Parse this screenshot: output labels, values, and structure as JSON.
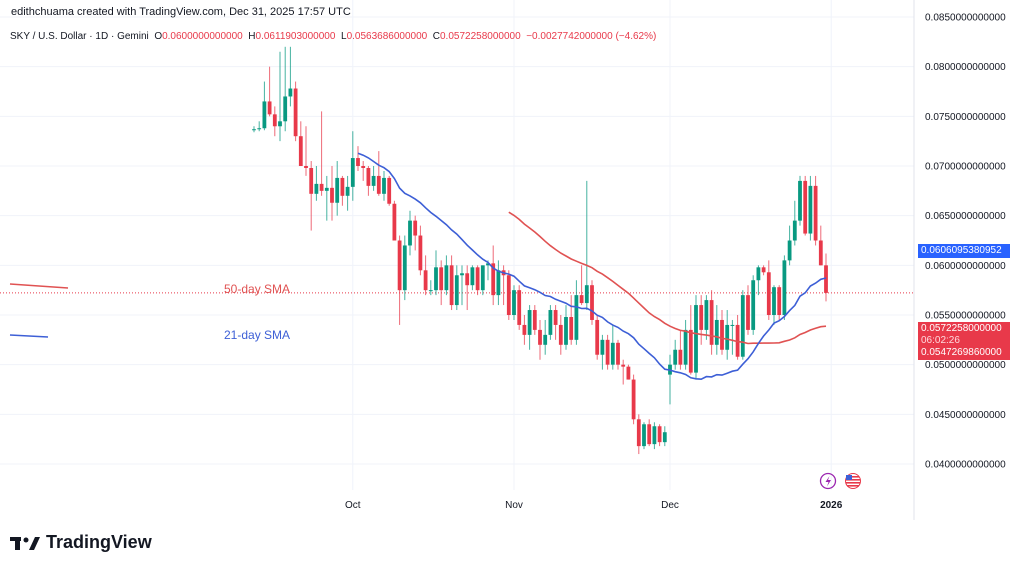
{
  "credit": "edithchuama created with TradingView.com, Dec 31, 2025 17:57 UTC",
  "legend": {
    "symbol": "SKY / U.S. Dollar · 1D · Gemini",
    "o_label": "O",
    "o": "0.0600000000000",
    "h_label": "H",
    "h": "0.0611903000000",
    "l_label": "L",
    "l": "0.0563686000000",
    "c_label": "C",
    "c": "0.0572258000000",
    "change": "−0.0027742000000 (−4.62%)"
  },
  "annotations": {
    "sma50": "50-day SMA",
    "sma21": "21-day SMA"
  },
  "price_axis": {
    "ticks": [
      "0.0850000000000",
      "0.0800000000000",
      "0.0750000000000",
      "0.0700000000000",
      "0.0650000000000",
      "0.0600000000000",
      "0.0550000000000",
      "0.0500000000000",
      "0.0450000000000",
      "0.0400000000000"
    ],
    "sma21_badge": "0.0606095380952",
    "price_badge": "0.0572258000000",
    "countdown": "06:02:26",
    "sma50_badge": "0.0547269860000"
  },
  "time_axis": {
    "labels": [
      "Oct",
      "Nov",
      "Dec",
      "2026"
    ]
  },
  "logo": "TradingView",
  "icons": {
    "alert": "lightning-icon",
    "flag": "us-flag-icon"
  },
  "colors": {
    "up": "#089981",
    "down": "#e8394a",
    "sma21": "#3d5fd6",
    "sma50": "#e05252",
    "grid": "#f0f3fa"
  },
  "chart_data": {
    "type": "candlestick",
    "symbol": "SKY / U.S. Dollar",
    "interval": "1D",
    "x_range": [
      "2025-09-12",
      "2025-12-31"
    ],
    "ylim": [
      0.04,
      0.085
    ],
    "indicators": [
      "SMA 21",
      "SMA 50"
    ],
    "ohlc": [
      [
        0.0737,
        0.074,
        0.0734,
        0.0737
      ],
      [
        0.0737,
        0.0745,
        0.0735,
        0.0738
      ],
      [
        0.0738,
        0.0785,
        0.0736,
        0.0765
      ],
      [
        0.0765,
        0.08,
        0.075,
        0.0752
      ],
      [
        0.0752,
        0.076,
        0.073,
        0.074
      ],
      [
        0.074,
        0.0815,
        0.0725,
        0.0745
      ],
      [
        0.0745,
        0.082,
        0.0735,
        0.077
      ],
      [
        0.077,
        0.082,
        0.076,
        0.0778
      ],
      [
        0.0778,
        0.0785,
        0.0725,
        0.073
      ],
      [
        0.073,
        0.0745,
        0.07,
        0.07
      ],
      [
        0.07,
        0.074,
        0.069,
        0.0698
      ],
      [
        0.0698,
        0.0705,
        0.0635,
        0.0672
      ],
      [
        0.0672,
        0.07,
        0.0665,
        0.0682
      ],
      [
        0.0682,
        0.0755,
        0.067,
        0.0675
      ],
      [
        0.0675,
        0.069,
        0.0645,
        0.0678
      ],
      [
        0.0678,
        0.07,
        0.0645,
        0.0663
      ],
      [
        0.0663,
        0.0705,
        0.065,
        0.0688
      ],
      [
        0.0688,
        0.069,
        0.066,
        0.067
      ],
      [
        0.067,
        0.069,
        0.0655,
        0.0679
      ],
      [
        0.0679,
        0.0735,
        0.0665,
        0.0708
      ],
      [
        0.0708,
        0.072,
        0.0695,
        0.07
      ],
      [
        0.07,
        0.0705,
        0.0685,
        0.0698
      ],
      [
        0.0698,
        0.07,
        0.067,
        0.068
      ],
      [
        0.068,
        0.07,
        0.0675,
        0.069
      ],
      [
        0.069,
        0.0715,
        0.067,
        0.0672
      ],
      [
        0.0672,
        0.0695,
        0.0665,
        0.0688
      ],
      [
        0.0688,
        0.069,
        0.066,
        0.0662
      ],
      [
        0.0662,
        0.0665,
        0.0625,
        0.0625
      ],
      [
        0.0625,
        0.063,
        0.054,
        0.0575
      ],
      [
        0.0575,
        0.063,
        0.0565,
        0.062
      ],
      [
        0.062,
        0.0655,
        0.061,
        0.0645
      ],
      [
        0.0645,
        0.065,
        0.0615,
        0.063
      ],
      [
        0.063,
        0.064,
        0.059,
        0.0595
      ],
      [
        0.0595,
        0.061,
        0.057,
        0.0575
      ],
      [
        0.0575,
        0.0585,
        0.057,
        0.0575
      ],
      [
        0.0575,
        0.0615,
        0.057,
        0.0598
      ],
      [
        0.0598,
        0.0605,
        0.056,
        0.0575
      ],
      [
        0.0575,
        0.061,
        0.057,
        0.06
      ],
      [
        0.06,
        0.061,
        0.0555,
        0.056
      ],
      [
        0.056,
        0.06,
        0.0555,
        0.059
      ],
      [
        0.059,
        0.06,
        0.056,
        0.0592
      ],
      [
        0.0592,
        0.06,
        0.0555,
        0.058
      ],
      [
        0.058,
        0.06,
        0.0575,
        0.0598
      ],
      [
        0.0598,
        0.06,
        0.057,
        0.0575
      ],
      [
        0.0575,
        0.06,
        0.057,
        0.06
      ],
      [
        0.06,
        0.0605,
        0.0585,
        0.0602
      ],
      [
        0.0602,
        0.062,
        0.056,
        0.057
      ],
      [
        0.057,
        0.0605,
        0.056,
        0.0595
      ],
      [
        0.0595,
        0.06,
        0.056,
        0.059
      ],
      [
        0.059,
        0.0595,
        0.0545,
        0.055
      ],
      [
        0.055,
        0.058,
        0.0545,
        0.0575
      ],
      [
        0.0575,
        0.058,
        0.0535,
        0.054
      ],
      [
        0.054,
        0.055,
        0.052,
        0.053
      ],
      [
        0.053,
        0.056,
        0.0515,
        0.0555
      ],
      [
        0.0555,
        0.056,
        0.053,
        0.0535
      ],
      [
        0.0535,
        0.0545,
        0.0505,
        0.052
      ],
      [
        0.052,
        0.0545,
        0.051,
        0.053
      ],
      [
        0.053,
        0.056,
        0.0525,
        0.0555
      ],
      [
        0.0555,
        0.056,
        0.0525,
        0.054
      ],
      [
        0.054,
        0.055,
        0.051,
        0.052
      ],
      [
        0.052,
        0.056,
        0.0515,
        0.0548
      ],
      [
        0.0548,
        0.057,
        0.052,
        0.0525
      ],
      [
        0.0525,
        0.0585,
        0.052,
        0.057
      ],
      [
        0.057,
        0.06,
        0.056,
        0.0562
      ],
      [
        0.0562,
        0.0685,
        0.0555,
        0.058
      ],
      [
        0.058,
        0.0585,
        0.054,
        0.0545
      ],
      [
        0.0545,
        0.055,
        0.0505,
        0.051
      ],
      [
        0.051,
        0.053,
        0.0495,
        0.0525
      ],
      [
        0.0525,
        0.053,
        0.0495,
        0.05
      ],
      [
        0.05,
        0.054,
        0.0495,
        0.0522
      ],
      [
        0.0522,
        0.0525,
        0.0495,
        0.05
      ],
      [
        0.05,
        0.0505,
        0.048,
        0.0498
      ],
      [
        0.0498,
        0.05,
        0.0485,
        0.0485
      ],
      [
        0.0485,
        0.049,
        0.044,
        0.0445
      ],
      [
        0.0445,
        0.045,
        0.041,
        0.0418
      ],
      [
        0.0418,
        0.0442,
        0.0415,
        0.044
      ],
      [
        0.044,
        0.0445,
        0.0418,
        0.042
      ],
      [
        0.042,
        0.0442,
        0.0415,
        0.0438
      ],
      [
        0.0438,
        0.044,
        0.0418,
        0.0422
      ],
      [
        0.0422,
        0.0438,
        0.0418,
        0.0432
      ],
      [
        0.049,
        0.051,
        0.046,
        0.05
      ],
      [
        0.05,
        0.0525,
        0.0495,
        0.0515
      ],
      [
        0.0515,
        0.0535,
        0.0495,
        0.05
      ],
      [
        0.05,
        0.0545,
        0.0495,
        0.0535
      ],
      [
        0.0535,
        0.056,
        0.049,
        0.0492
      ],
      [
        0.0492,
        0.057,
        0.0485,
        0.056
      ],
      [
        0.056,
        0.057,
        0.052,
        0.0535
      ],
      [
        0.0535,
        0.057,
        0.0525,
        0.0565
      ],
      [
        0.0565,
        0.0575,
        0.051,
        0.052
      ],
      [
        0.052,
        0.056,
        0.051,
        0.0545
      ],
      [
        0.0545,
        0.0555,
        0.051,
        0.0515
      ],
      [
        0.0515,
        0.0555,
        0.0505,
        0.054
      ],
      [
        0.054,
        0.0545,
        0.051,
        0.054
      ],
      [
        0.054,
        0.055,
        0.0505,
        0.0508
      ],
      [
        0.0508,
        0.0575,
        0.0505,
        0.057
      ],
      [
        0.057,
        0.058,
        0.053,
        0.0535
      ],
      [
        0.0535,
        0.059,
        0.053,
        0.0585
      ],
      [
        0.0585,
        0.06,
        0.057,
        0.0598
      ],
      [
        0.0598,
        0.06,
        0.059,
        0.0593
      ],
      [
        0.0593,
        0.0605,
        0.0545,
        0.055
      ],
      [
        0.055,
        0.058,
        0.054,
        0.0578
      ],
      [
        0.0578,
        0.058,
        0.0545,
        0.055
      ],
      [
        0.055,
        0.061,
        0.0545,
        0.0605
      ],
      [
        0.0605,
        0.064,
        0.06,
        0.0625
      ],
      [
        0.0625,
        0.0665,
        0.062,
        0.0645
      ],
      [
        0.0645,
        0.069,
        0.064,
        0.0685
      ],
      [
        0.0685,
        0.069,
        0.063,
        0.0632
      ],
      [
        0.0632,
        0.069,
        0.0625,
        0.068
      ],
      [
        0.068,
        0.069,
        0.062,
        0.0625
      ],
      [
        0.0625,
        0.064,
        0.06,
        0.06
      ],
      [
        0.06,
        0.0611903,
        0.0563686,
        0.0572258
      ]
    ],
    "last_price": 0.0572258,
    "sma21_last": 0.0606095380952,
    "sma50_last": 0.054726986
  }
}
